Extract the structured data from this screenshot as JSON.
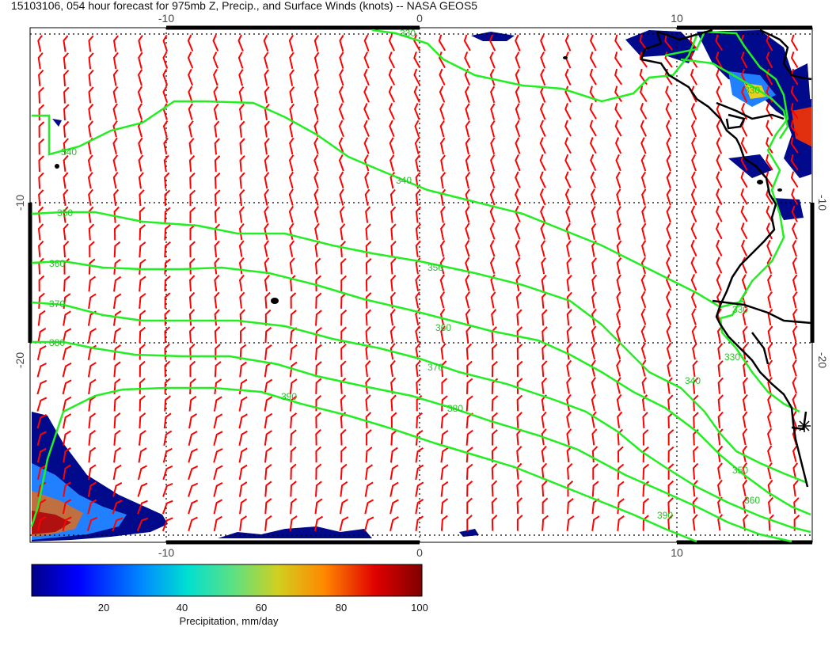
{
  "title": "15103106, 054 hour forecast for 975mb Z, Precip., and Surface Winds (knots) -- NASA GEOS5",
  "axes": {
    "top_ticks": [
      "-10",
      "0",
      "10"
    ],
    "bottom_ticks": [
      "-10",
      "0",
      "10"
    ],
    "left_ticks": [
      "-10",
      "-20"
    ],
    "right_ticks": [
      "-10",
      "-20"
    ]
  },
  "contours": {
    "color": "#22ee22",
    "labels": [
      "330",
      "340",
      "340",
      "350",
      "350",
      "360",
      "360",
      "370",
      "370",
      "380",
      "380",
      "390",
      "390",
      "350",
      "360",
      "340",
      "330",
      "330",
      "330"
    ]
  },
  "colorbar": {
    "ticks": [
      "20",
      "40",
      "60",
      "80",
      "100"
    ],
    "range": [
      0,
      100
    ],
    "label": "Precipitation, mm/day",
    "colors": [
      "#000088",
      "#0000ff",
      "#0088ff",
      "#00e0d0",
      "#60e080",
      "#d0d020",
      "#ff8800",
      "#e00000",
      "#800000"
    ]
  },
  "wind_barbs": {
    "color": "#ff0000"
  },
  "coastline": {
    "color": "#000000"
  }
}
